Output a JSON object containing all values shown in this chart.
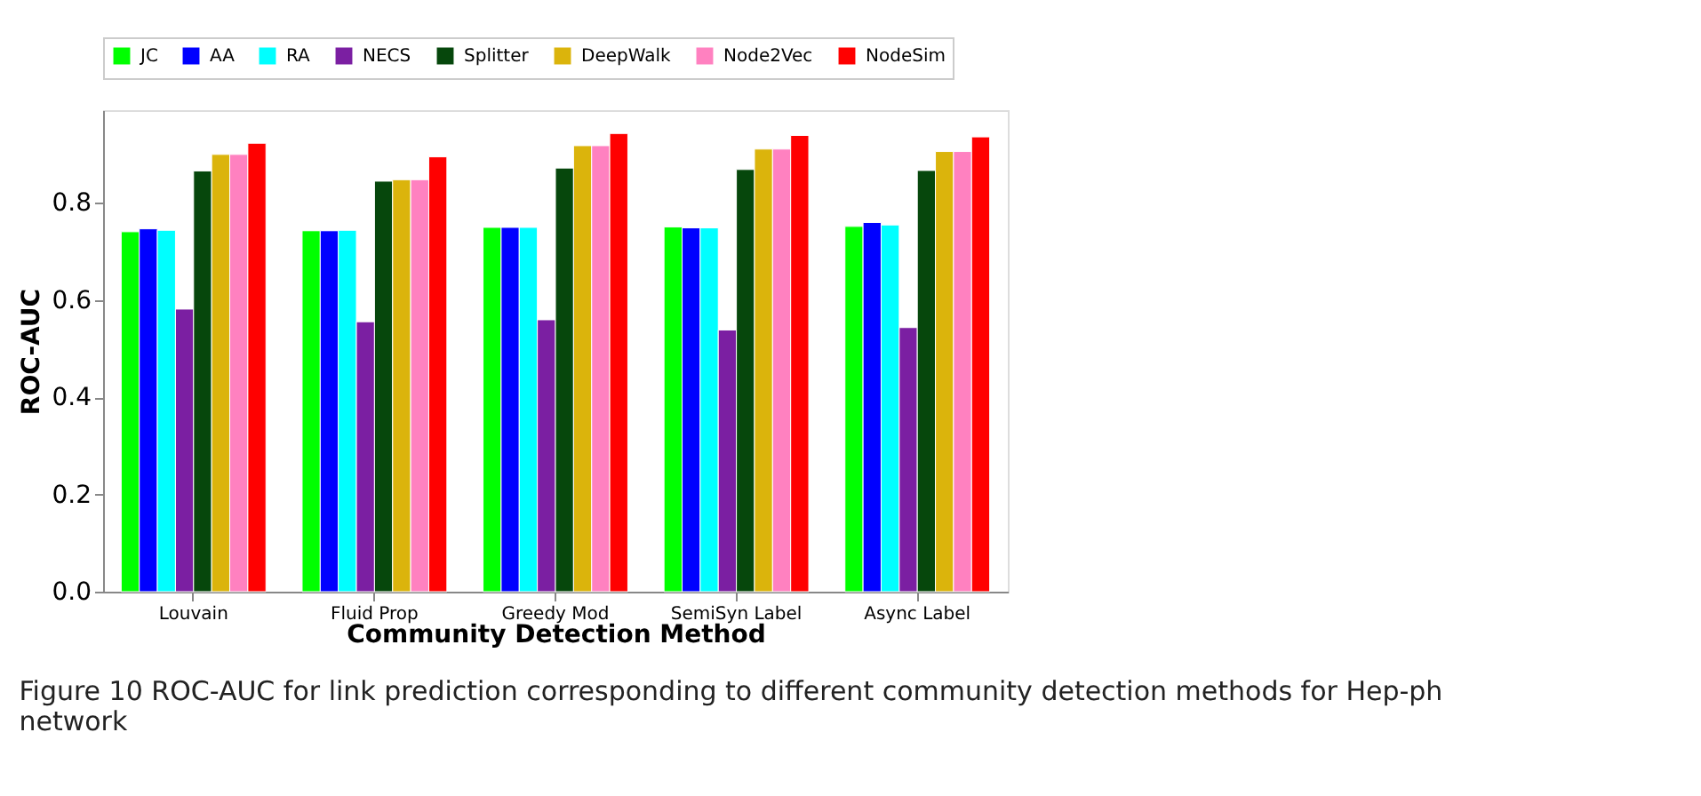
{
  "chart_data": {
    "type": "bar",
    "xlabel": "Community Detection Method",
    "ylabel": "ROC-AUC",
    "categories": [
      "Louvain",
      "Fluid Prop",
      "Greedy Mod",
      "SemiSyn Label",
      "Async Label"
    ],
    "series": [
      {
        "name": "JC",
        "color": "#00ff00",
        "values": [
          0.74,
          0.742,
          0.749,
          0.75,
          0.751
        ]
      },
      {
        "name": "AA",
        "color": "#0000ff",
        "values": [
          0.746,
          0.742,
          0.749,
          0.748,
          0.759
        ]
      },
      {
        "name": "RA",
        "color": "#00ffff",
        "values": [
          0.743,
          0.743,
          0.749,
          0.748,
          0.754
        ]
      },
      {
        "name": "NECS",
        "color": "#7b1fa2",
        "values": [
          0.581,
          0.555,
          0.559,
          0.538,
          0.543
        ]
      },
      {
        "name": "Splitter",
        "color": "#06470c",
        "values": [
          0.865,
          0.844,
          0.871,
          0.868,
          0.866
        ]
      },
      {
        "name": "DeepWalk",
        "color": "#dbb40c",
        "values": [
          0.899,
          0.847,
          0.917,
          0.91,
          0.905
        ]
      },
      {
        "name": "Node2Vec",
        "color": "#ff81c0",
        "values": [
          0.899,
          0.847,
          0.917,
          0.91,
          0.905
        ]
      },
      {
        "name": "NodeSim",
        "color": "#ff0000",
        "values": [
          0.922,
          0.894,
          0.942,
          0.938,
          0.935
        ]
      }
    ],
    "ylim": [
      0,
      0.99
    ],
    "yticks": [
      {
        "value": 0,
        "label": "0.0"
      },
      {
        "value": 0.2,
        "label": "0.2"
      },
      {
        "value": 0.4,
        "label": "0.4"
      },
      {
        "value": 0.6,
        "label": "0.6"
      },
      {
        "value": 0.8,
        "label": "0.8"
      }
    ],
    "grid": false,
    "legend": "top",
    "annotations": [
      "Figure 10  ROC-AUC for link prediction corresponding to different community detection methods for Hep-ph",
      "network"
    ]
  }
}
